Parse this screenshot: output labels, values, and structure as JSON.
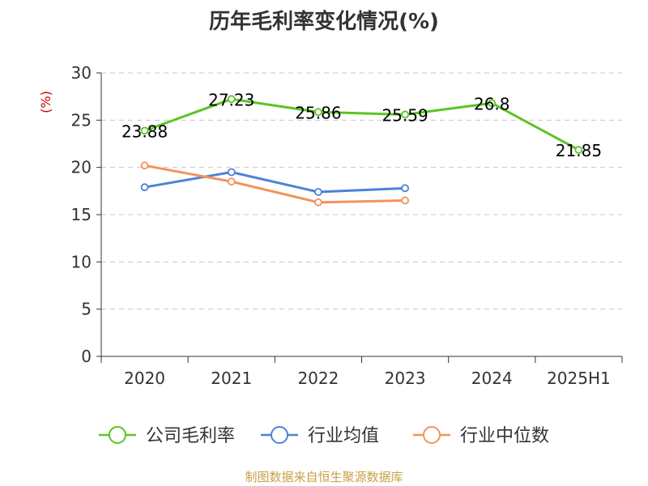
{
  "chart_data": {
    "type": "line",
    "title": "历年毛利率变化情况(%)",
    "ylabel": "(%)",
    "categories": [
      "2020",
      "2021",
      "2022",
      "2023",
      "2024",
      "2025H1"
    ],
    "ylim": [
      0,
      30
    ],
    "yticks": [
      0,
      5,
      10,
      15,
      20,
      25,
      30
    ],
    "grid": true,
    "legend_position": "bottom",
    "series": [
      {
        "name": "公司毛利率",
        "color": "#5bc425",
        "values": [
          23.88,
          27.23,
          25.86,
          25.59,
          26.8,
          21.85
        ],
        "labels": [
          "23.88",
          "27.23",
          "25.86",
          "25.59",
          "26.8",
          "21.85"
        ]
      },
      {
        "name": "行业均值",
        "color": "#4d82d8",
        "values": [
          17.9,
          19.5,
          17.4,
          17.8,
          null,
          null
        ]
      },
      {
        "name": "行业中位数",
        "color": "#f5925a",
        "values": [
          20.2,
          18.5,
          16.3,
          16.5,
          null,
          null
        ]
      }
    ]
  },
  "footer": {
    "source": "制图数据来自恒生聚源数据库"
  },
  "colors": {
    "axis": "#333333",
    "grid": "#c8c8c8",
    "ylabel": "#cc0000"
  }
}
